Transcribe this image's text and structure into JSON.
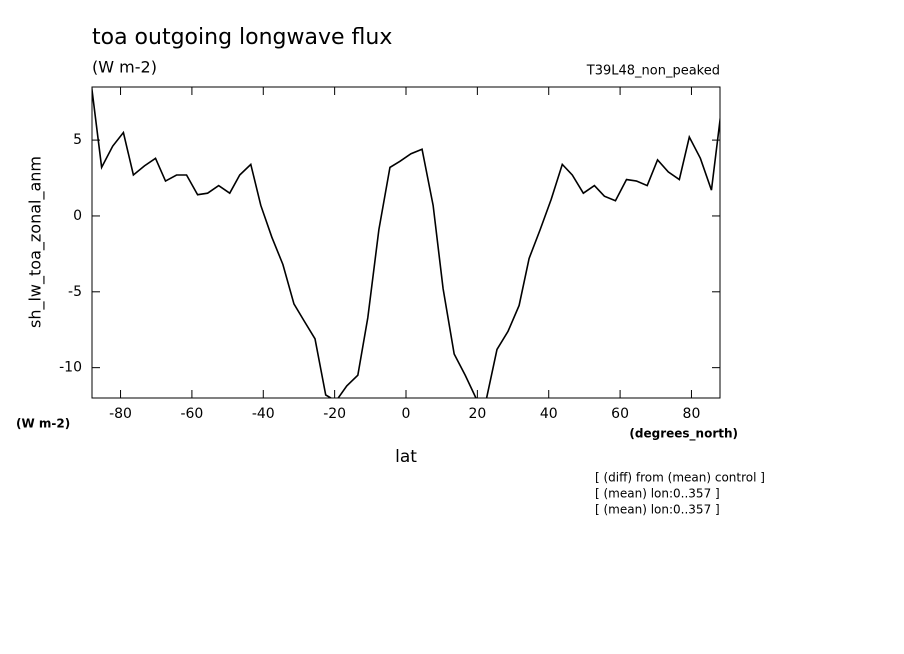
{
  "chart_data": {
    "type": "line",
    "title": "toa outgoing longwave flux",
    "subtitle": "(W m-2)",
    "dataset_label": "T39L48_non_peaked",
    "y_label": "sh_lw_toa_zonal_anm",
    "y_units": "(W m-2)",
    "x_label": "lat",
    "x_units": "(degrees_north)",
    "annotations": [
      "[ (diff) from (mean) control ]",
      "[ (mean) lon:0..357 ]",
      "[ (mean) lon:0..357 ]"
    ],
    "xlim": [
      -88,
      88
    ],
    "ylim": [
      -12,
      8.5
    ],
    "xticks": [
      -80,
      -60,
      -40,
      -20,
      0,
      20,
      40,
      60,
      80
    ],
    "yticks": [
      -10,
      -5,
      0,
      5
    ],
    "grid": false,
    "series": [
      {
        "color": "#000000",
        "x": [
          -88.1,
          -85.3,
          -82.2,
          -79.2,
          -76.4,
          -73.3,
          -70.2,
          -67.4,
          -64.3,
          -61.5,
          -58.4,
          -55.6,
          -52.5,
          -49.4,
          -46.6,
          -43.5,
          -40.7,
          -37.6,
          -34.5,
          -31.4,
          -28.6,
          -25.5,
          -22.5,
          -19.6,
          -16.6,
          -13.5,
          -10.7,
          -7.6,
          -4.5,
          -1.7,
          1.4,
          4.5,
          7.6,
          10.4,
          13.5,
          16.6,
          19.6,
          22.5,
          25.5,
          28.6,
          31.7,
          34.5,
          37.6,
          40.7,
          43.8,
          46.6,
          49.7,
          52.8,
          55.6,
          58.7,
          61.8,
          64.6,
          67.6,
          70.5,
          73.5,
          76.6,
          79.4,
          82.5,
          85.6,
          88.1
        ],
        "values": [
          8.5,
          3.2,
          4.6,
          5.5,
          2.7,
          3.3,
          3.8,
          2.3,
          2.7,
          2.7,
          1.4,
          1.5,
          2.0,
          1.5,
          2.7,
          3.4,
          0.7,
          -1.4,
          -3.2,
          -5.8,
          -6.9,
          -8.1,
          -11.8,
          -12.2,
          -11.2,
          -10.5,
          -6.7,
          -0.9,
          3.2,
          3.6,
          4.1,
          4.4,
          0.7,
          -4.8,
          -9.1,
          -10.5,
          -12.0,
          -12.1,
          -8.8,
          -7.6,
          -5.9,
          -2.8,
          -0.9,
          1.1,
          3.4,
          2.7,
          1.5,
          2.0,
          1.3,
          1.0,
          2.4,
          2.3,
          2.0,
          3.7,
          2.9,
          2.4,
          5.2,
          3.8,
          1.7,
          6.5
        ]
      }
    ]
  }
}
